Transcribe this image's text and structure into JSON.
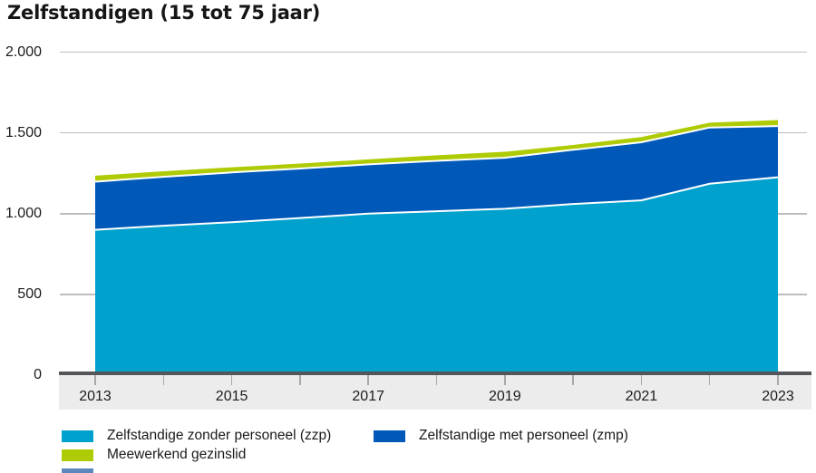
{
  "title": "Zelfstandigen (15 tot 75 jaar)",
  "y_axis": {
    "tick_labels": [
      "2.000",
      "1.500",
      "1.000",
      "500",
      "0"
    ],
    "tick_values": [
      2000,
      1500,
      1000,
      500,
      0
    ]
  },
  "x_axis": {
    "labeled_ticks": [
      "2013",
      "2015",
      "2017",
      "2019",
      "2021",
      "2023"
    ]
  },
  "legend": {
    "items": [
      {
        "label": "Zelfstandige zonder personeel (zzp)",
        "color": "#00a1cd"
      },
      {
        "label": "Zelfstandige met personeel (zmp)",
        "color": "#0058b8"
      },
      {
        "label": "Meewerkend gezinslid",
        "color": "#afcb05"
      }
    ]
  },
  "colors": {
    "zzp_area": "#00a1cd",
    "zmp_area": "#0058b8",
    "meewerkend_area": "#afcb05",
    "gridline": "#bdbdbd",
    "zero_line": "#55565a",
    "axis_band": "#ececec",
    "tick": "#a8a8a8",
    "text": "#1a1a1a",
    "layer_separator": "#ffffff"
  },
  "chart_data": {
    "type": "area",
    "stacked": true,
    "title": "Zelfstandigen (15 tot 75 jaar)",
    "xlabel": "",
    "ylabel": "",
    "x": [
      2013,
      2014,
      2015,
      2016,
      2017,
      2018,
      2019,
      2020,
      2021,
      2022,
      2023
    ],
    "series": [
      {
        "name": "Zelfstandige zonder personeel (zzp)",
        "color": "#00a1cd",
        "values": [
          900,
          925,
          947,
          973,
          1000,
          1015,
          1030,
          1060,
          1082,
          1185,
          1225
        ]
      },
      {
        "name": "Zelfstandige met personeel (zmp)",
        "color": "#0058b8",
        "values": [
          298,
          303,
          308,
          306,
          305,
          312,
          316,
          335,
          360,
          348,
          317
        ]
      },
      {
        "name": "Meewerkend gezinslid",
        "color": "#afcb05",
        "values": [
          37,
          34,
          32,
          31,
          31,
          34,
          37,
          30,
          32,
          30,
          37
        ]
      }
    ],
    "stacked_totals": [
      1235,
      1262,
      1287,
      1310,
      1336,
      1361,
      1383,
      1425,
      1474,
      1563,
      1579
    ],
    "ylim": [
      0,
      2000
    ],
    "grid": true,
    "legend_position": "bottom"
  }
}
